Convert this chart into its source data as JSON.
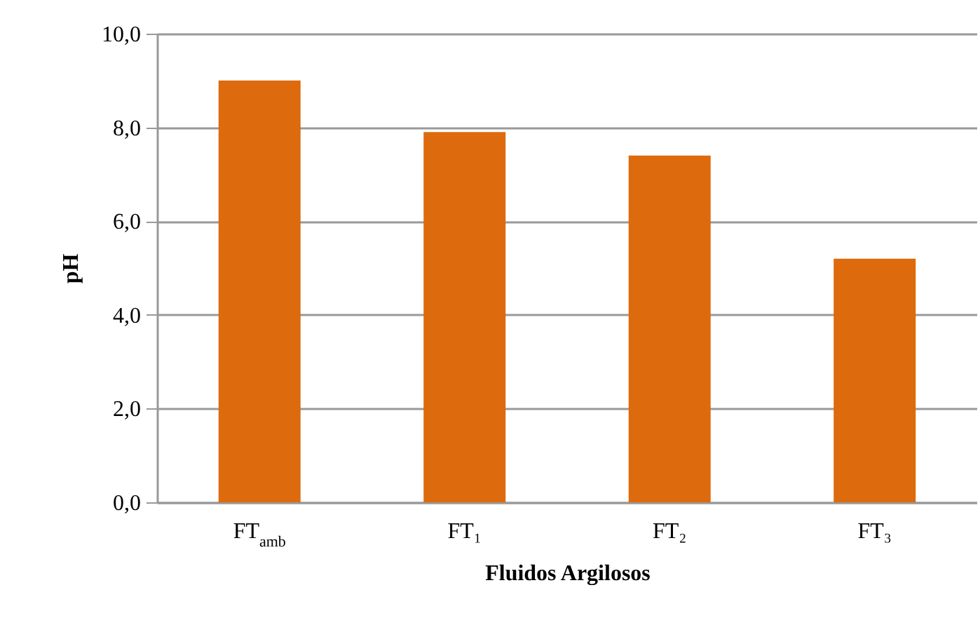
{
  "chart_data": {
    "type": "bar",
    "xlabel": "Fluidos Argilosos",
    "ylabel": "pH",
    "categories": [
      "FT$_{amb}$",
      "FT₁",
      "FT₂",
      "FT₃"
    ],
    "values": [
      9.0,
      7.9,
      7.4,
      5.2
    ],
    "color": "#dd6a0c",
    "ylim": [
      0,
      10
    ],
    "yticks": [
      {
        "value": 0,
        "label": "0,0"
      },
      {
        "value": 2,
        "label": "2,0"
      },
      {
        "value": 4,
        "label": "4,0"
      },
      {
        "value": 6,
        "label": "6,0"
      },
      {
        "value": 8,
        "label": "8,0"
      },
      {
        "value": 10,
        "label": "10,0"
      }
    ],
    "grid": "y"
  }
}
